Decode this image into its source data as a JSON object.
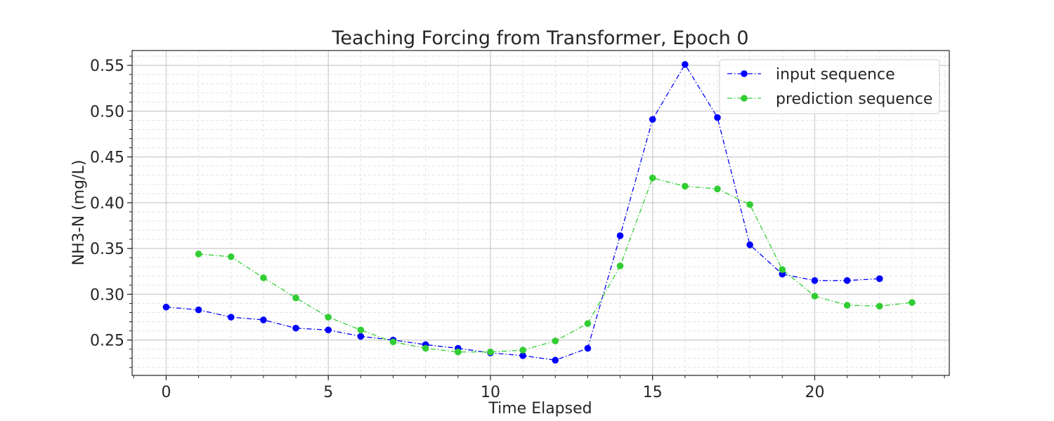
{
  "chart_data": {
    "type": "line",
    "title": "Teaching Forcing from Transformer, Epoch 0",
    "xlabel": "Time Elapsed",
    "ylabel": "NH3-N (mg/L)",
    "xlim": [
      -1.05,
      24.15
    ],
    "ylim": [
      0.2114,
      0.5662
    ],
    "xticks": [
      0,
      5,
      10,
      15,
      20
    ],
    "yticks": [
      0.25,
      0.3,
      0.35,
      0.4,
      0.45,
      0.5,
      0.55
    ],
    "ytick_labels": [
      "0.25",
      "0.30",
      "0.35",
      "0.40",
      "0.45",
      "0.50",
      "0.55"
    ],
    "grid": true,
    "minor_grid": true,
    "legend_position": "top-right",
    "series": [
      {
        "name": "input sequence",
        "color": "#0000ff",
        "line_style": "dash-dot",
        "marker": "circle",
        "x": [
          0,
          1,
          2,
          3,
          4,
          5,
          6,
          7,
          8,
          9,
          10,
          11,
          12,
          13,
          14,
          15,
          16,
          17,
          18,
          19,
          20,
          21,
          22
        ],
        "y": [
          0.286,
          0.283,
          0.275,
          0.272,
          0.263,
          0.261,
          0.254,
          0.25,
          0.245,
          0.241,
          0.236,
          0.233,
          0.228,
          0.241,
          0.364,
          0.491,
          0.551,
          0.493,
          0.354,
          0.322,
          0.315,
          0.315,
          0.317
        ]
      },
      {
        "name": "prediction sequence",
        "color": "#32cd32",
        "line_style": "dash-dot",
        "marker": "circle",
        "x": [
          1,
          2,
          3,
          4,
          5,
          6,
          7,
          8,
          9,
          10,
          11,
          12,
          13,
          14,
          15,
          16,
          17,
          18,
          19,
          20,
          21,
          22,
          23
        ],
        "y": [
          0.344,
          0.341,
          0.318,
          0.296,
          0.275,
          0.261,
          0.248,
          0.241,
          0.237,
          0.237,
          0.239,
          0.249,
          0.268,
          0.331,
          0.427,
          0.418,
          0.415,
          0.398,
          0.327,
          0.298,
          0.288,
          0.287,
          0.291
        ]
      }
    ]
  }
}
